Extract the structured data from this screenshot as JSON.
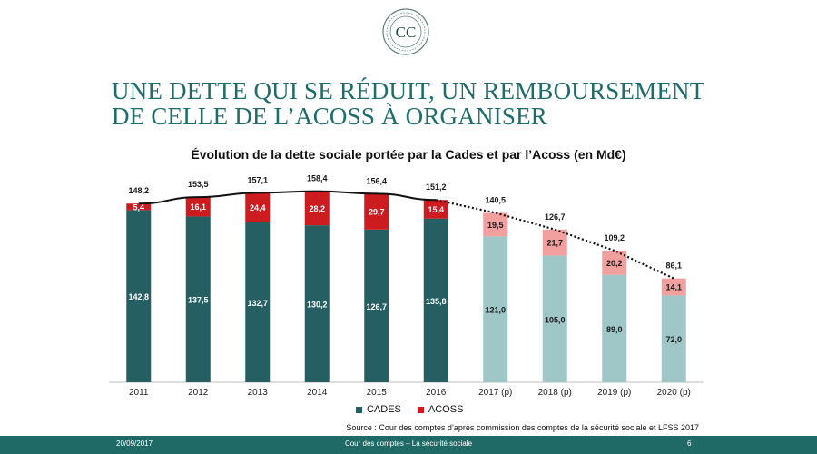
{
  "slide": {
    "title_line1": "UNE DETTE QUI SE RÉDUIT, UN REMBOURSEMENT",
    "title_line2": "DE CELLE DE L’ACOSS À ORGANISER",
    "logo_letters": "CC"
  },
  "legend": {
    "cades": "CADES",
    "acoss": "ACOSS"
  },
  "source": "Source : Cour des comptes d’après commission des comptes de la sécurité sociale et LFSS 2017",
  "footer": {
    "date": "20/09/2017",
    "center": "Cour des comptes – La sécurité sociale",
    "page": "6"
  },
  "colors": {
    "cades": "#255f62",
    "acoss": "#cc1c1f",
    "cades_projected": "#9fc7c8",
    "acoss_projected": "#f29f9f",
    "title": "#1e6d6b",
    "footer": "#1f6a67"
  },
  "chart_data": {
    "type": "bar",
    "stacked": true,
    "title": "Évolution de la dette sociale portée par la Cades et par l’Acoss (en Md€)",
    "categories": [
      "2011",
      "2012",
      "2013",
      "2014",
      "2015",
      "2016",
      "2017 (p)",
      "2018 (p)",
      "2019 (p)",
      "2020 (p)"
    ],
    "series": [
      {
        "name": "CADES",
        "values": [
          142.8,
          137.5,
          132.7,
          130.2,
          126.7,
          135.8,
          121.0,
          105.0,
          89.0,
          72.0
        ],
        "labels": [
          "142,8",
          "137,5",
          "132,7",
          "130,2",
          "126,7",
          "135,8",
          "121,0",
          "105,0",
          "89,0",
          "72,0"
        ]
      },
      {
        "name": "ACOSS",
        "values": [
          5.4,
          16.1,
          24.4,
          28.2,
          29.7,
          15.4,
          19.5,
          21.7,
          20.2,
          14.1
        ],
        "labels": [
          "5,4",
          "16,1",
          "24,4",
          "28,2",
          "29,7",
          "15,4",
          "19,5",
          "21,7",
          "20,2",
          "14,1"
        ]
      }
    ],
    "totals": [
      148.2,
      153.5,
      157.1,
      158.4,
      156.4,
      151.2,
      140.5,
      126.7,
      109.2,
      86.1
    ],
    "total_labels": [
      "148,2",
      "153,5",
      "157,1",
      "158,4",
      "156,4",
      "151,2",
      "140,5",
      "126,7",
      "109,2",
      "86,1"
    ],
    "projected_from_index": 6,
    "trend_line": {
      "solid_until_index": 5,
      "dotted_from_index": 5
    },
    "ylim": [
      0,
      180
    ],
    "grid": false,
    "legend_position": "bottom"
  }
}
